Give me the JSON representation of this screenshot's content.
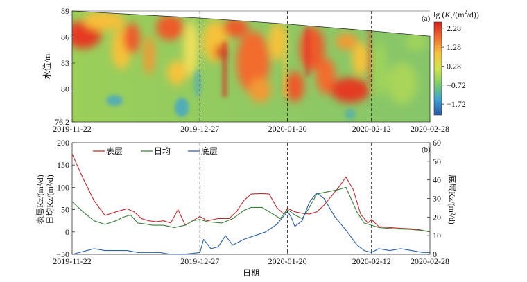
{
  "chart_data": [
    {
      "panel_label": "(a)",
      "type": "heatmap",
      "ylabel": "水位/m",
      "y_ticks": [
        "89",
        "86",
        "83",
        "80",
        "76.2"
      ],
      "ylim": [
        76.2,
        89
      ],
      "x_ticks": [
        "2019-11-22",
        "2019-12-27",
        "2020-01-20",
        "2020-02-12",
        "2020-02-28"
      ],
      "dashed_lines_at": [
        "2019-12-27",
        "2020-01-20",
        "2020-02-12"
      ],
      "surface_water_level": [
        {
          "date": "2019-11-22",
          "level": 89.0
        },
        {
          "date": "2019-12-27",
          "level": 88.2
        },
        {
          "date": "2020-01-20",
          "level": 87.5
        },
        {
          "date": "2020-02-12",
          "level": 86.7
        },
        {
          "date": "2020-02-28",
          "level": 86.1
        }
      ],
      "colorbar": {
        "title": "lg (Kz/(m²/d))",
        "title_parts": [
          "lg (",
          "K",
          "z",
          "/(m",
          "2",
          "/d))"
        ],
        "ticks": [
          "2.28",
          "1.28",
          "0.28",
          "−0.72",
          "−1.72"
        ],
        "tick_values": [
          2.28,
          1.28,
          0.28,
          -0.72,
          -1.72
        ],
        "range": [
          -2.3,
          2.6
        ],
        "colors": [
          "#2a56a8",
          "#3aa1d2",
          "#7ccd6a",
          "#cfe34a",
          "#f6c23a",
          "#f26c2d",
          "#d8201f"
        ]
      }
    },
    {
      "panel_label": "(b)",
      "type": "line",
      "xlabel": "日期",
      "x_ticks": [
        "2019-11-22",
        "2019-12-27",
        "2020-01-20",
        "2020-02-12",
        "2020-02-28"
      ],
      "dashed_lines_at": [
        "2019-12-27",
        "2020-01-20",
        "2020-02-12"
      ],
      "ylabel_left_lines": [
        "表层Kz/(m²/d)",
        "日均Kz/(m²/d)"
      ],
      "ylabel_right": "底层Kz/(m²/d)",
      "yleft_ticks": [
        "200",
        "150",
        "100",
        "50",
        "0",
        "−50"
      ],
      "ylim_left": [
        -50,
        200
      ],
      "yright_ticks": [
        "60",
        "50",
        "40",
        "30",
        "20",
        "10",
        "0"
      ],
      "ylim_right": [
        0,
        60
      ],
      "legend": [
        "表层",
        "日均",
        "底层"
      ],
      "series": [
        {
          "name": "表层",
          "axis": "left",
          "color": "#c0282d",
          "points": [
            [
              "2019-11-22",
              175
            ],
            [
              "2019-11-25",
              120
            ],
            [
              "2019-11-28",
              70
            ],
            [
              "2019-12-01",
              37
            ],
            [
              "2019-12-04",
              45
            ],
            [
              "2019-12-07",
              52
            ],
            [
              "2019-12-09",
              45
            ],
            [
              "2019-12-11",
              30
            ],
            [
              "2019-12-13",
              25
            ],
            [
              "2019-12-15",
              23
            ],
            [
              "2019-12-17",
              25
            ],
            [
              "2019-12-19",
              20
            ],
            [
              "2019-12-21",
              50
            ],
            [
              "2019-12-23",
              15
            ],
            [
              "2019-12-25",
              25
            ],
            [
              "2019-12-27",
              35
            ],
            [
              "2019-12-29",
              25
            ],
            [
              "2020-01-01",
              30
            ],
            [
              "2020-01-04",
              30
            ],
            [
              "2020-01-06",
              45
            ],
            [
              "2020-01-08",
              70
            ],
            [
              "2020-01-10",
              85
            ],
            [
              "2020-01-13",
              86
            ],
            [
              "2020-01-15",
              85
            ],
            [
              "2020-01-17",
              55
            ],
            [
              "2020-01-19",
              40
            ],
            [
              "2020-01-20",
              53
            ],
            [
              "2020-01-22",
              45
            ],
            [
              "2020-01-24",
              42
            ],
            [
              "2020-01-26",
              40
            ],
            [
              "2020-01-28",
              45
            ],
            [
              "2020-01-30",
              60
            ],
            [
              "2020-02-01",
              80
            ],
            [
              "2020-02-03",
              100
            ],
            [
              "2020-02-05",
              123
            ],
            [
              "2020-02-07",
              95
            ],
            [
              "2020-02-09",
              40
            ],
            [
              "2020-02-11",
              20
            ],
            [
              "2020-02-12",
              28
            ],
            [
              "2020-02-14",
              12
            ],
            [
              "2020-02-17",
              10
            ],
            [
              "2020-02-20",
              8
            ],
            [
              "2020-02-23",
              7
            ],
            [
              "2020-02-25",
              5
            ],
            [
              "2020-02-28",
              0
            ]
          ]
        },
        {
          "name": "日均",
          "axis": "left",
          "color": "#3b7d3b",
          "points": [
            [
              "2019-11-22",
              68
            ],
            [
              "2019-11-25",
              45
            ],
            [
              "2019-11-28",
              25
            ],
            [
              "2019-12-01",
              17
            ],
            [
              "2019-12-04",
              25
            ],
            [
              "2019-12-06",
              33
            ],
            [
              "2019-12-08",
              38
            ],
            [
              "2019-12-10",
              20
            ],
            [
              "2019-12-12",
              18
            ],
            [
              "2019-12-14",
              15
            ],
            [
              "2019-12-17",
              15
            ],
            [
              "2019-12-20",
              10
            ],
            [
              "2019-12-23",
              15
            ],
            [
              "2019-12-25",
              25
            ],
            [
              "2019-12-27",
              28
            ],
            [
              "2019-12-29",
              23
            ],
            [
              "2020-01-02",
              20
            ],
            [
              "2020-01-05",
              30
            ],
            [
              "2020-01-08",
              48
            ],
            [
              "2020-01-10",
              55
            ],
            [
              "2020-01-13",
              55
            ],
            [
              "2020-01-16",
              40
            ],
            [
              "2020-01-18",
              30
            ],
            [
              "2020-01-20",
              50
            ],
            [
              "2020-01-22",
              38
            ],
            [
              "2020-01-24",
              30
            ],
            [
              "2020-01-26",
              55
            ],
            [
              "2020-01-28",
              85
            ],
            [
              "2020-01-31",
              90
            ],
            [
              "2020-02-03",
              95
            ],
            [
              "2020-02-05",
              100
            ],
            [
              "2020-02-08",
              45
            ],
            [
              "2020-02-10",
              20
            ],
            [
              "2020-02-12",
              15
            ],
            [
              "2020-02-14",
              10
            ],
            [
              "2020-02-18",
              7
            ],
            [
              "2020-02-22",
              6
            ],
            [
              "2020-02-25",
              4
            ],
            [
              "2020-02-28",
              1
            ]
          ]
        },
        {
          "name": "底层",
          "axis": "right",
          "color": "#2b5fa6",
          "points": [
            [
              "2019-11-22",
              0
            ],
            [
              "2019-11-25",
              1.5
            ],
            [
              "2019-11-28",
              3
            ],
            [
              "2019-12-01",
              2
            ],
            [
              "2019-12-04",
              2
            ],
            [
              "2019-12-07",
              2
            ],
            [
              "2019-12-10",
              1
            ],
            [
              "2019-12-13",
              1
            ],
            [
              "2019-12-16",
              1
            ],
            [
              "2019-12-19",
              0
            ],
            [
              "2019-12-22",
              0
            ],
            [
              "2019-12-25",
              0.5
            ],
            [
              "2019-12-27",
              1
            ],
            [
              "2019-12-28",
              8
            ],
            [
              "2019-12-30",
              3
            ],
            [
              "2020-01-01",
              4
            ],
            [
              "2020-01-03",
              10
            ],
            [
              "2020-01-05",
              5
            ],
            [
              "2020-01-08",
              8
            ],
            [
              "2020-01-11",
              10
            ],
            [
              "2020-01-14",
              12
            ],
            [
              "2020-01-17",
              16
            ],
            [
              "2020-01-20",
              23
            ],
            [
              "2020-01-21",
              20
            ],
            [
              "2020-01-22",
              15
            ],
            [
              "2020-01-24",
              18
            ],
            [
              "2020-01-26",
              28
            ],
            [
              "2020-01-28",
              33
            ],
            [
              "2020-01-30",
              30
            ],
            [
              "2020-02-02",
              20
            ],
            [
              "2020-02-05",
              13
            ],
            [
              "2020-02-08",
              5
            ],
            [
              "2020-02-10",
              2
            ],
            [
              "2020-02-12",
              1
            ],
            [
              "2020-02-14",
              3
            ],
            [
              "2020-02-17",
              2
            ],
            [
              "2020-02-20",
              3
            ],
            [
              "2020-02-23",
              2
            ],
            [
              "2020-02-26",
              1
            ],
            [
              "2020-02-28",
              1
            ]
          ]
        }
      ]
    }
  ]
}
